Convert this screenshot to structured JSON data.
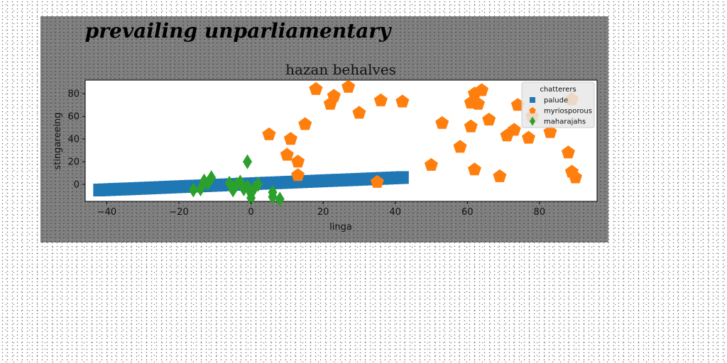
{
  "chart_data": {
    "type": "scatter",
    "suptitle": "prevailing unparliamentary",
    "title": "hazan behalves",
    "xlabel": "linga",
    "ylabel": "stingareeing",
    "xlim": [
      -46,
      96
    ],
    "ylim": [
      -15,
      92
    ],
    "xticks": [
      -40,
      -20,
      0,
      20,
      40,
      60,
      80
    ],
    "yticks": [
      0,
      20,
      40,
      60,
      80
    ],
    "grid": false,
    "legend": {
      "title": "chatterers",
      "placement": "top-right"
    },
    "series": [
      {
        "name": "palude",
        "color": "#1f77b4",
        "marker": "square",
        "style": "band",
        "x": [
          -42,
          -30,
          -20,
          -10,
          0,
          10,
          20,
          30,
          42
        ],
        "y": [
          -5,
          -3.5,
          -2.2,
          -0.9,
          0.4,
          1.7,
          3.1,
          4.5,
          6
        ]
      },
      {
        "name": "myriosporous",
        "color": "#ff7f0e",
        "marker": "pentagon",
        "x": [
          5,
          10,
          11,
          13,
          13,
          15,
          18,
          22,
          23,
          27,
          30,
          35,
          36,
          42,
          50,
          53,
          58,
          61,
          61,
          62,
          62,
          63,
          64,
          66,
          69,
          71,
          73,
          74,
          77,
          78,
          83,
          88,
          89,
          89,
          90
        ],
        "y": [
          44,
          26,
          40,
          20,
          8,
          53,
          84,
          71,
          78,
          86,
          63,
          2,
          74,
          73,
          17,
          54,
          33,
          51,
          72,
          80,
          13,
          71,
          83,
          57,
          7,
          43,
          48,
          70,
          41,
          60,
          46,
          28,
          75,
          11,
          6
        ]
      },
      {
        "name": "maharajahs",
        "color": "#2ca02c",
        "marker": "diamond",
        "x": [
          -16,
          -14,
          -13,
          -12,
          -11,
          -6,
          -5,
          -4,
          -3,
          -2,
          -1,
          -1,
          0,
          0,
          1,
          2,
          6,
          6,
          8
        ],
        "y": [
          -5,
          -4,
          3,
          1,
          6,
          1,
          -5,
          0,
          2,
          -4,
          -2,
          20,
          -8,
          -12,
          -3,
          0,
          -7,
          -11,
          -13
        ]
      }
    ]
  }
}
